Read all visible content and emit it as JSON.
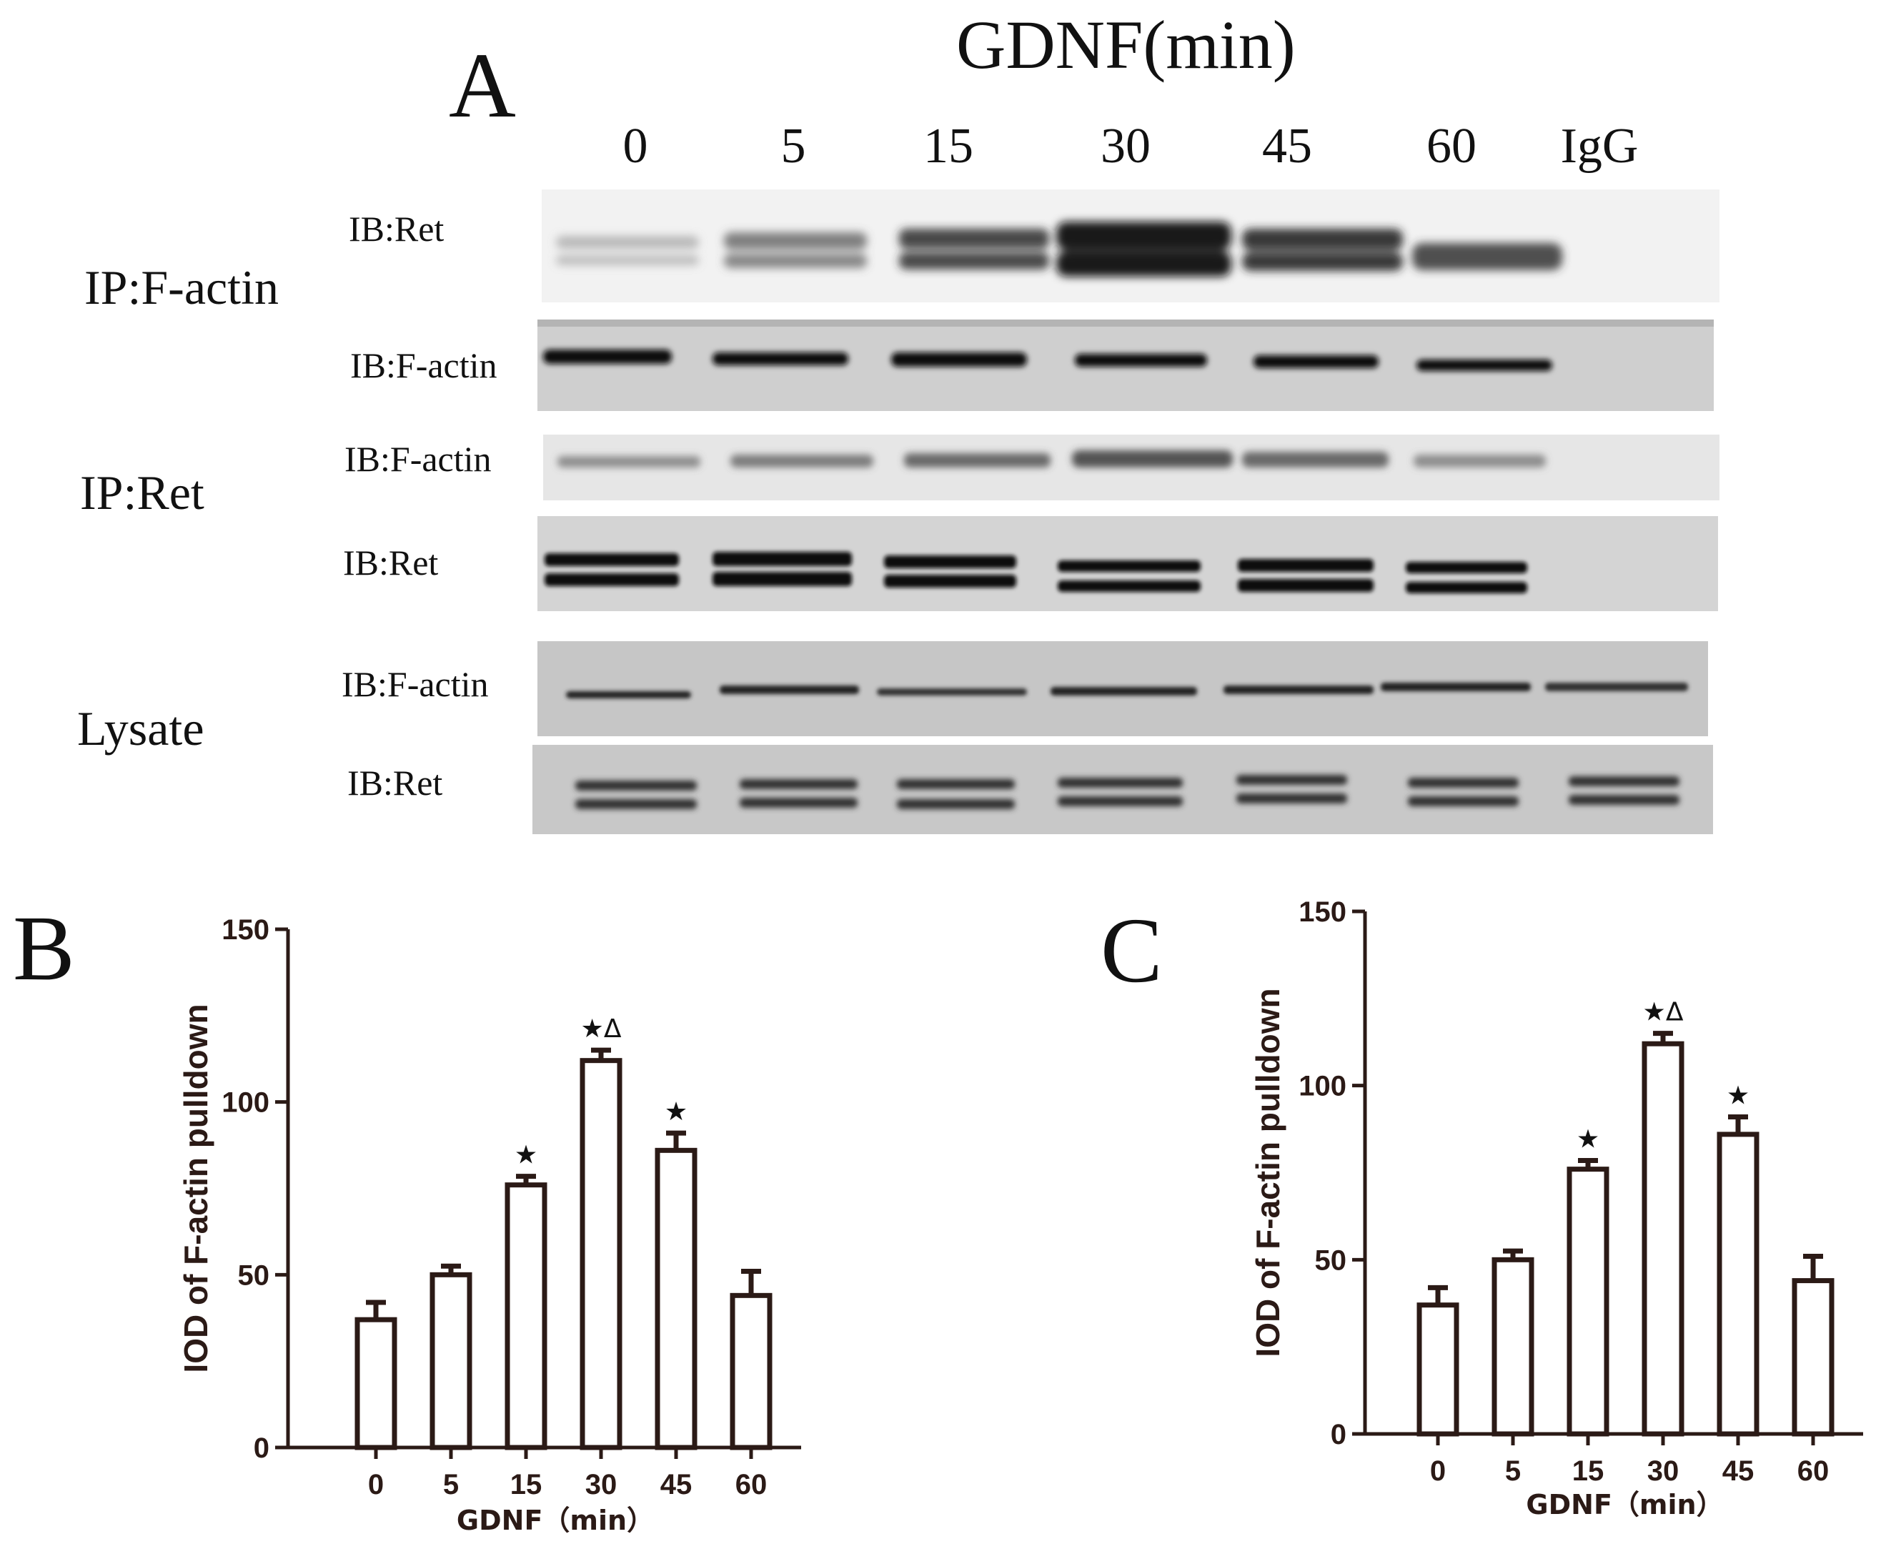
{
  "panel_a": {
    "letter": "A",
    "title": "GDNF(min)",
    "lanes": [
      "0",
      "5",
      "15",
      "30",
      "45",
      "60",
      "IgG"
    ],
    "groups": [
      {
        "label": "IP:F-actin",
        "blots": [
          {
            "label": "IB:Ret"
          },
          {
            "label": "IB:F-actin"
          }
        ]
      },
      {
        "label": "IP:Ret",
        "blots": [
          {
            "label": "IB:F-actin"
          },
          {
            "label": "IB:Ret"
          }
        ]
      },
      {
        "label": "Lysate",
        "blots": [
          {
            "label": "IB:F-actin"
          },
          {
            "label": "IB:Ret"
          }
        ]
      }
    ]
  },
  "panel_b": {
    "letter": "B"
  },
  "panel_c": {
    "letter": "C"
  },
  "chart_data": [
    {
      "panel": "B",
      "type": "bar",
      "categories": [
        "0",
        "5",
        "15",
        "30",
        "45",
        "60"
      ],
      "values": [
        37,
        50,
        76,
        112,
        86,
        44
      ],
      "errors": [
        5,
        2.5,
        2.5,
        3,
        5,
        7
      ],
      "annotations": [
        "",
        "",
        "★",
        "★Δ",
        "★",
        ""
      ],
      "xlabel": "GDNF（min）",
      "ylabel": "IOD of F-actin pulldown",
      "ylim": [
        0,
        150
      ],
      "yticks": [
        "0",
        "50",
        "100",
        "150"
      ],
      "grid": false
    },
    {
      "panel": "C",
      "type": "bar",
      "categories": [
        "0",
        "5",
        "15",
        "30",
        "45",
        "60"
      ],
      "values": [
        37,
        50,
        76,
        112,
        86,
        44
      ],
      "errors": [
        5,
        2.5,
        2.5,
        3,
        5,
        7
      ],
      "annotations": [
        "",
        "",
        "★",
        "★Δ",
        "★",
        ""
      ],
      "xlabel": "GDNF（min）",
      "ylabel": "IOD of F-actin pulldown",
      "ylim": [
        0,
        150
      ],
      "yticks": [
        "0",
        "50",
        "100",
        "150"
      ],
      "grid": false
    }
  ]
}
